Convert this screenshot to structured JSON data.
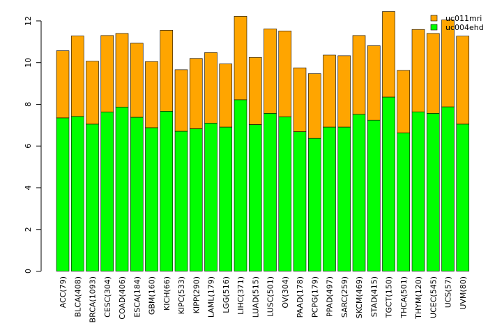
{
  "chart_data": {
    "type": "bar",
    "stacked": true,
    "title": "",
    "xlabel": "",
    "ylabel": "",
    "ylim": [
      0,
      12.4
    ],
    "yticks": [
      "0",
      "2",
      "4",
      "6",
      "8",
      "10",
      "12"
    ],
    "legend_position": "top-right",
    "categories": [
      "ACC(79)",
      "BLCA(408)",
      "BRCA(1093)",
      "CESC(304)",
      "COAD(406)",
      "ESCA(184)",
      "GBM(160)",
      "KICH(66)",
      "KIPC(533)",
      "KIPP(290)",
      "LAML(179)",
      "LGG(516)",
      "LIHC(371)",
      "LUAD(515)",
      "LUSC(501)",
      "OV(304)",
      "PAAD(178)",
      "PCPG(179)",
      "PPAD(497)",
      "SARC(259)",
      "SKCM(469)",
      "STAD(415)",
      "TGCT(150)",
      "THCA(501)",
      "THYM(120)",
      "UCEC(545)",
      "UCS(57)",
      "UVM(80)"
    ],
    "series": [
      {
        "name": "uc004ehd",
        "color": "#00ff00",
        "values": [
          7.35,
          7.42,
          7.05,
          7.63,
          7.87,
          7.38,
          6.88,
          7.67,
          6.71,
          6.83,
          7.1,
          6.91,
          8.22,
          7.03,
          7.57,
          7.4,
          6.69,
          6.37,
          6.91,
          6.91,
          7.52,
          7.24,
          8.35,
          6.63,
          7.64,
          7.57,
          7.88,
          7.05
        ]
      },
      {
        "name": "uc011mri",
        "color": "#ffa500",
        "values": [
          3.22,
          3.86,
          3.02,
          3.67,
          3.53,
          3.55,
          3.17,
          3.88,
          2.95,
          3.37,
          3.38,
          3.03,
          4.0,
          3.22,
          4.05,
          4.12,
          3.06,
          3.1,
          3.45,
          3.42,
          3.78,
          3.57,
          4.1,
          3.0,
          3.95,
          3.83,
          4.17,
          4.22
        ]
      }
    ]
  }
}
